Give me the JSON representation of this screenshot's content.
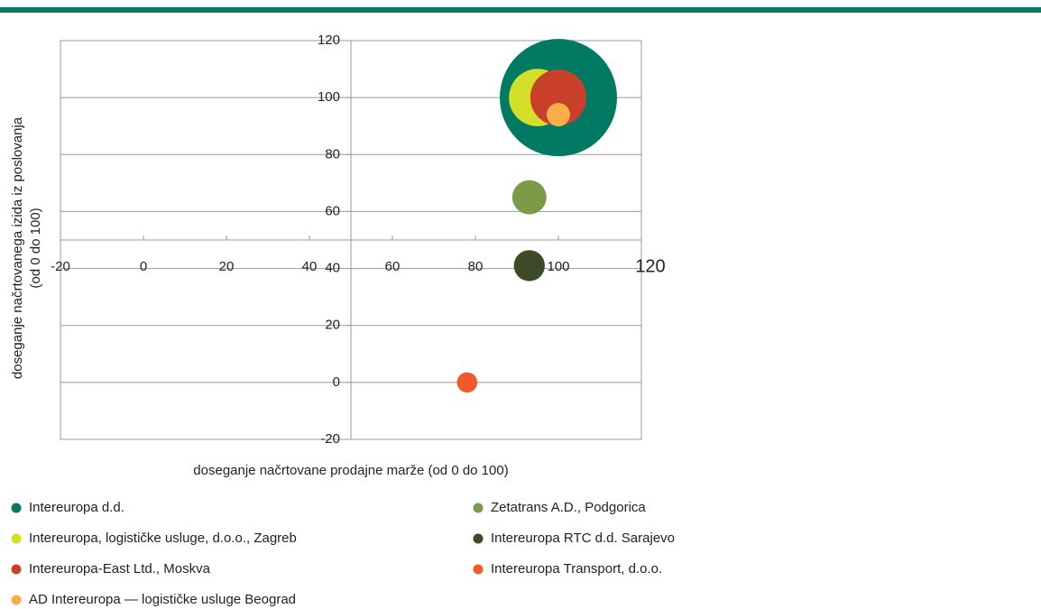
{
  "chart_data": {
    "type": "bubble",
    "xlabel": "doseganje načrtovane prodajne marže (od 0 do 100)",
    "ylabel": [
      "doseganje načrtovanega izida iz poslovanja",
      "(od 0 do 100)"
    ],
    "xlim": [
      -20,
      120
    ],
    "xticks": [
      -20,
      0,
      20,
      40,
      60,
      80,
      100,
      120
    ],
    "ylim": [
      -20,
      120
    ],
    "yticks": [
      -20,
      0,
      20,
      40,
      60,
      80,
      100,
      120
    ],
    "x_axis_at": 50,
    "y_axis_at": 50,
    "grid": true,
    "series": [
      {
        "name": "Intereuropa d.d.",
        "color": "#007a63",
        "x": [
          100
        ],
        "values": [
          100
        ],
        "sizes": [
          100
        ]
      },
      {
        "name": "Intereuropa, logističke usluge, d.o.o., Zagreb",
        "color": "#d4df27",
        "x": [
          95
        ],
        "values": [
          100
        ],
        "sizes": [
          24
        ]
      },
      {
        "name": "Intereuropa-East Ltd., Moskva",
        "color": "#c8402a",
        "x": [
          100
        ],
        "values": [
          100
        ],
        "sizes": [
          23
        ]
      },
      {
        "name": "AD Intereuropa — logističke usluge Beograd",
        "color": "#f9ae48",
        "x": [
          100
        ],
        "values": [
          94
        ],
        "sizes": [
          4
        ]
      },
      {
        "name": "Zetatrans A.D., Podgorica",
        "color": "#7d9a48",
        "x": [
          93
        ],
        "values": [
          65
        ],
        "sizes": [
          8.5
        ]
      },
      {
        "name": "Intereuropa RTC d.d. Sarajevo",
        "color": "#3d4a28",
        "x": [
          93
        ],
        "values": [
          41
        ],
        "sizes": [
          7
        ]
      },
      {
        "name": "Intereuropa Transport, d.o.o.",
        "color": "#f05a28",
        "x": [
          78
        ],
        "values": [
          0
        ],
        "sizes": [
          3
        ]
      }
    ]
  }
}
